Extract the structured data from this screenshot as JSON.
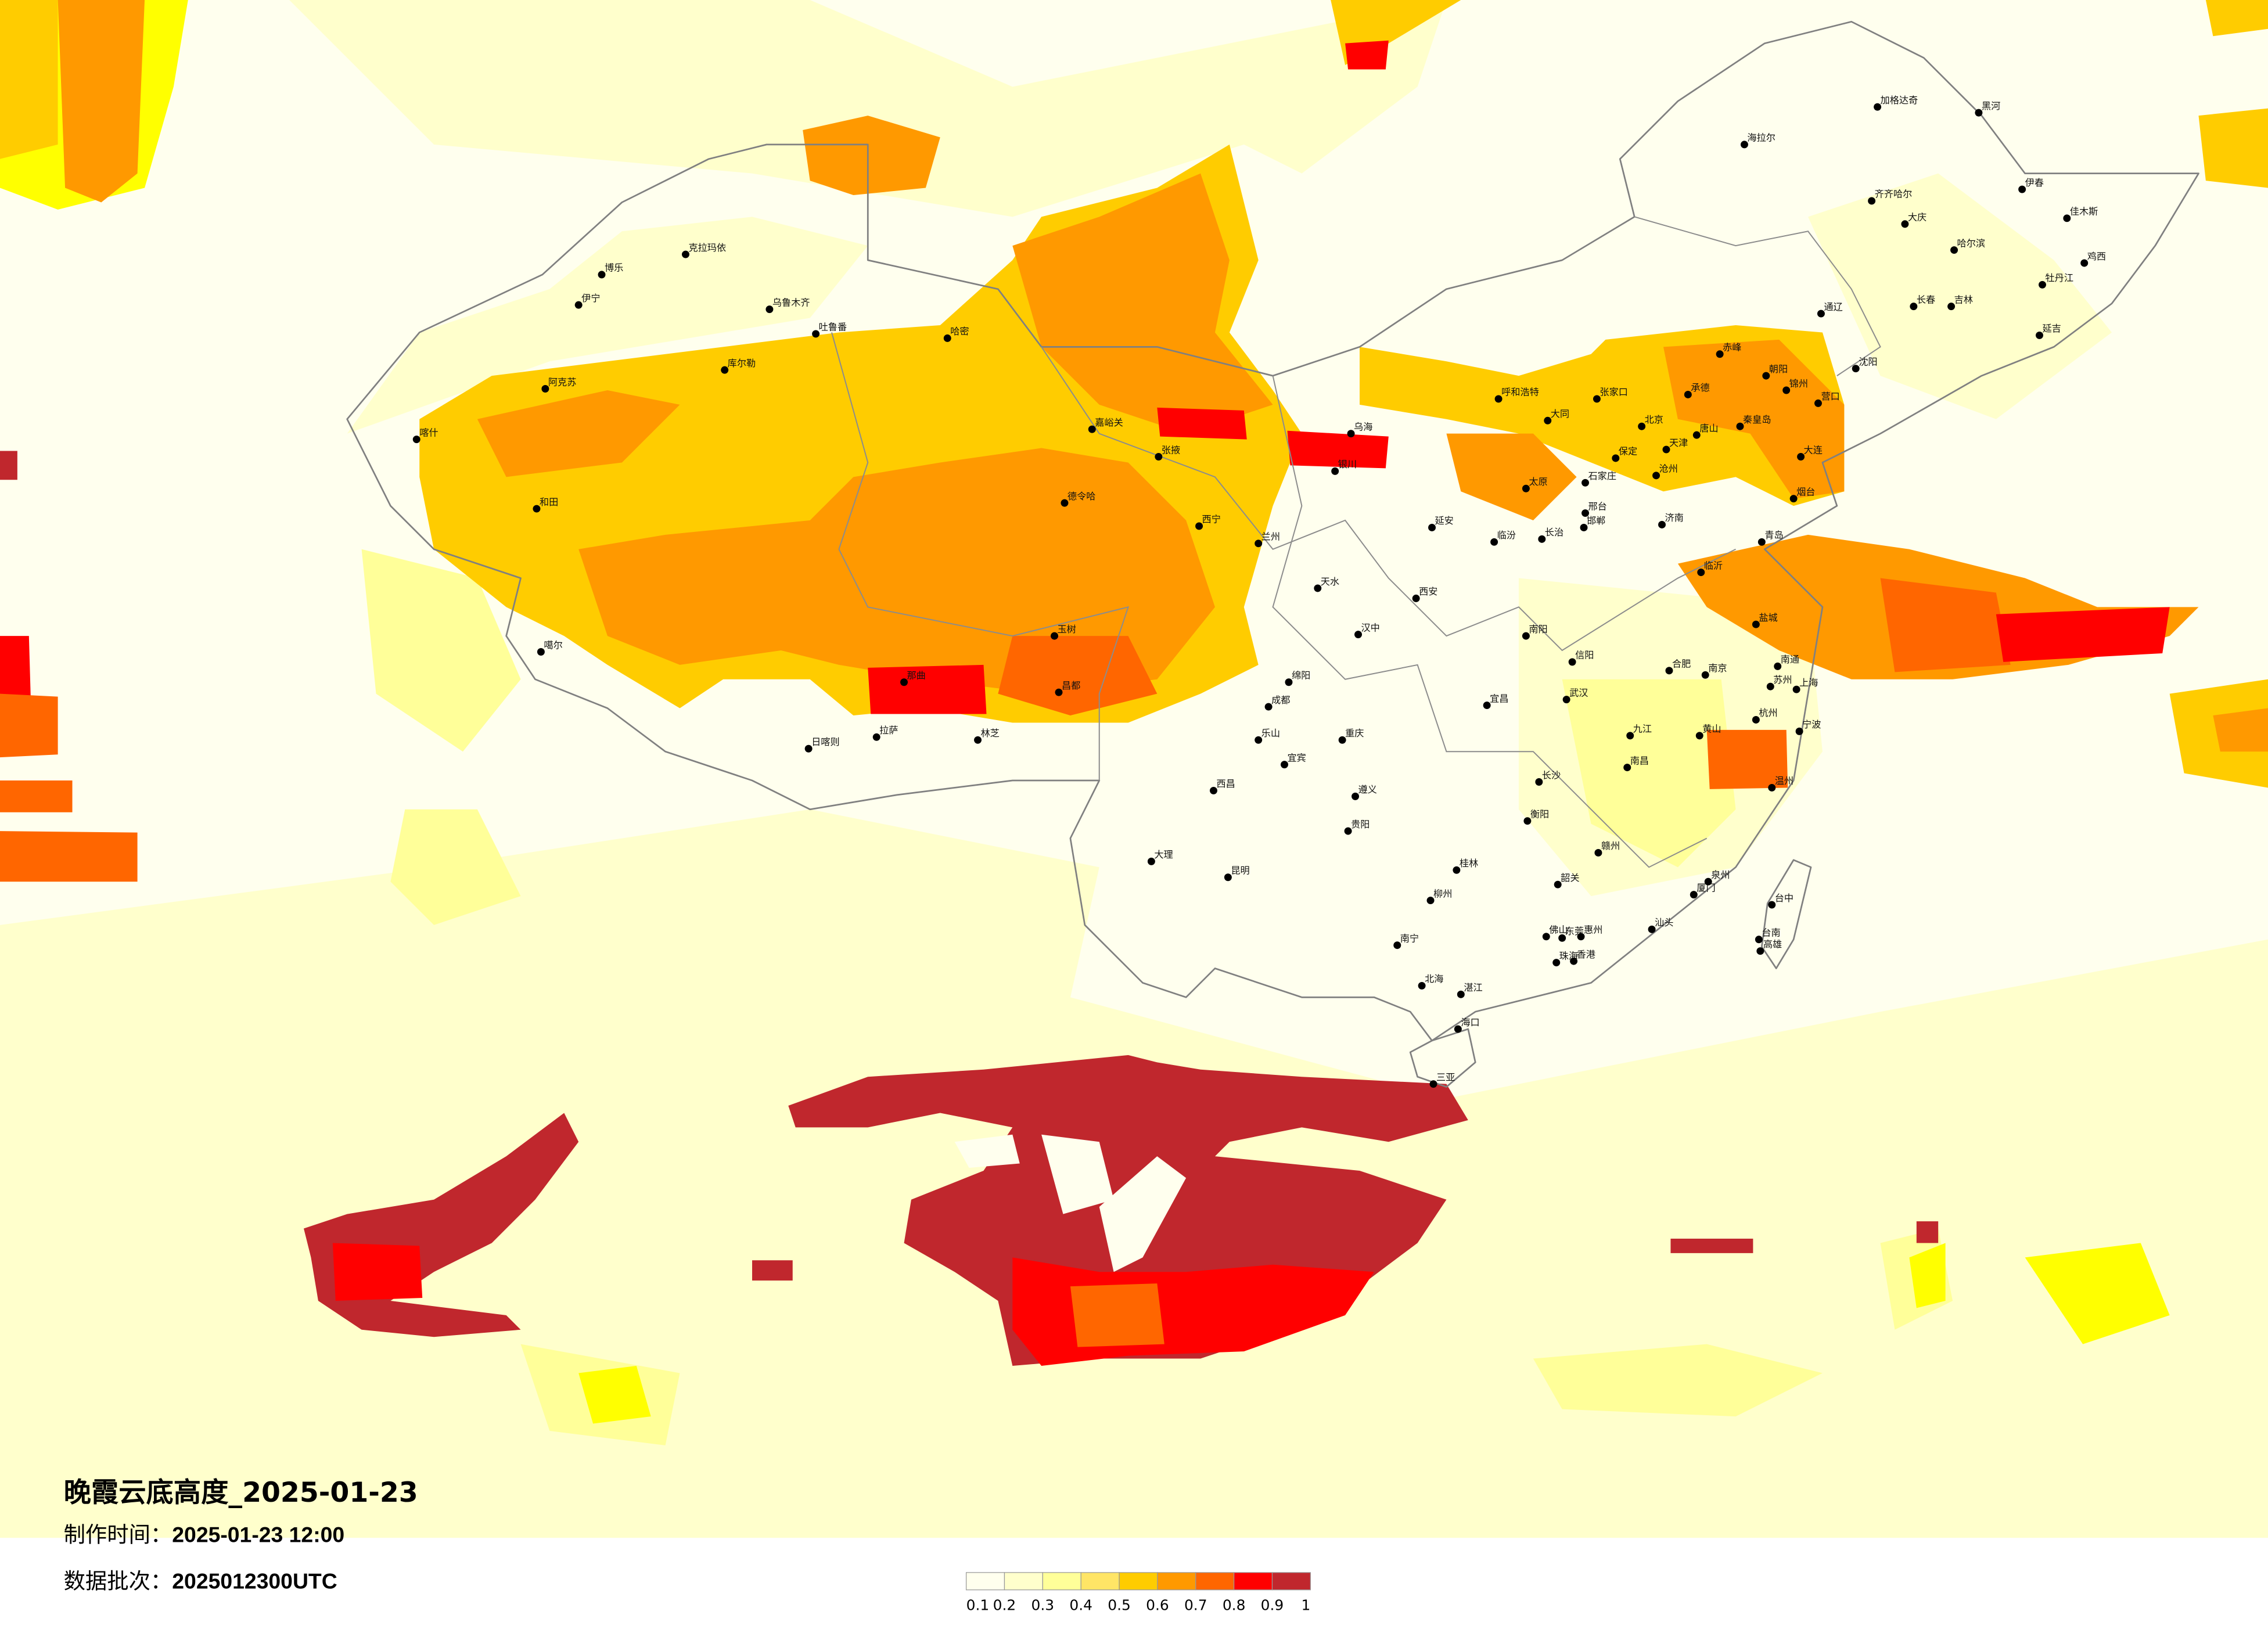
{
  "title": "晚霞云底高度_2025-01-23",
  "production_time": {
    "label": "制作时间：",
    "value": "2025-01-23 12:00"
  },
  "data_batch": {
    "label": "数据批次：",
    "value": "2025012300UTC"
  },
  "legend": {
    "ticks": [
      "0.1",
      "0.2",
      "0.3",
      "0.4",
      "0.5",
      "0.6",
      "0.7",
      "0.8",
      "0.9",
      "1"
    ],
    "colors": [
      "#FFFFEE",
      "#FFFFCC",
      "#FFFF99",
      "#FFE566",
      "#FFCC00",
      "#FF9900",
      "#FF6600",
      "#FF0000",
      "#C0272D"
    ]
  },
  "colors": {
    "background": "#FFFFEE",
    "border": "#808080",
    "city_dot": "#000000"
  },
  "cities": [
    "北京",
    "天津",
    "石家庄",
    "济南",
    "青岛",
    "大连",
    "太原",
    "呼和浩特",
    "张家口",
    "唐山",
    "承德",
    "赤峰",
    "秦皇岛",
    "保定",
    "沧州",
    "大同",
    "邯郸",
    "邢台",
    "营口",
    "锦州",
    "朝阳",
    "临沂",
    "烟台",
    "长治",
    "临汾",
    "上海",
    "杭州",
    "南京",
    "合肥",
    "苏州",
    "宁波",
    "南昌",
    "武汉",
    "长沙",
    "九江",
    "温州",
    "宜昌",
    "南阳",
    "信阳",
    "衡阳",
    "黄山",
    "盐城",
    "南通",
    "佛山",
    "东莞",
    "香港",
    "珠海",
    "惠州",
    "南宁",
    "桂林",
    "柳州",
    "海口",
    "三亚",
    "厦门",
    "泉州",
    "汕头",
    "韶关",
    "台中",
    "高雄",
    "台南",
    "赣州",
    "湛江",
    "北海",
    "兰州",
    "西宁",
    "银川",
    "西安",
    "嘉峪关",
    "张掖",
    "德令哈",
    "玉树",
    "天水",
    "汉中",
    "延安",
    "乌海",
    "成都",
    "重庆",
    "昆明",
    "贵阳",
    "大理",
    "绵阳",
    "遵义",
    "西昌",
    "乐山",
    "宜宾",
    "昌都",
    "克拉玛依",
    "伊宁",
    "博乐",
    "库尔勒",
    "阿克苏",
    "喀什",
    "吐鲁番",
    "哈密",
    "和田",
    "乌鲁木齐",
    "噶尔",
    "日喀则",
    "拉萨",
    "林芝",
    "那曲",
    "哈尔滨",
    "长春",
    "吉林",
    "沈阳",
    "齐齐哈尔",
    "大庆",
    "海拉尔",
    "黑河",
    "加格达奇",
    "佳木斯",
    "牡丹江",
    "延吉",
    "伊春",
    "通辽",
    "鸡西"
  ]
}
